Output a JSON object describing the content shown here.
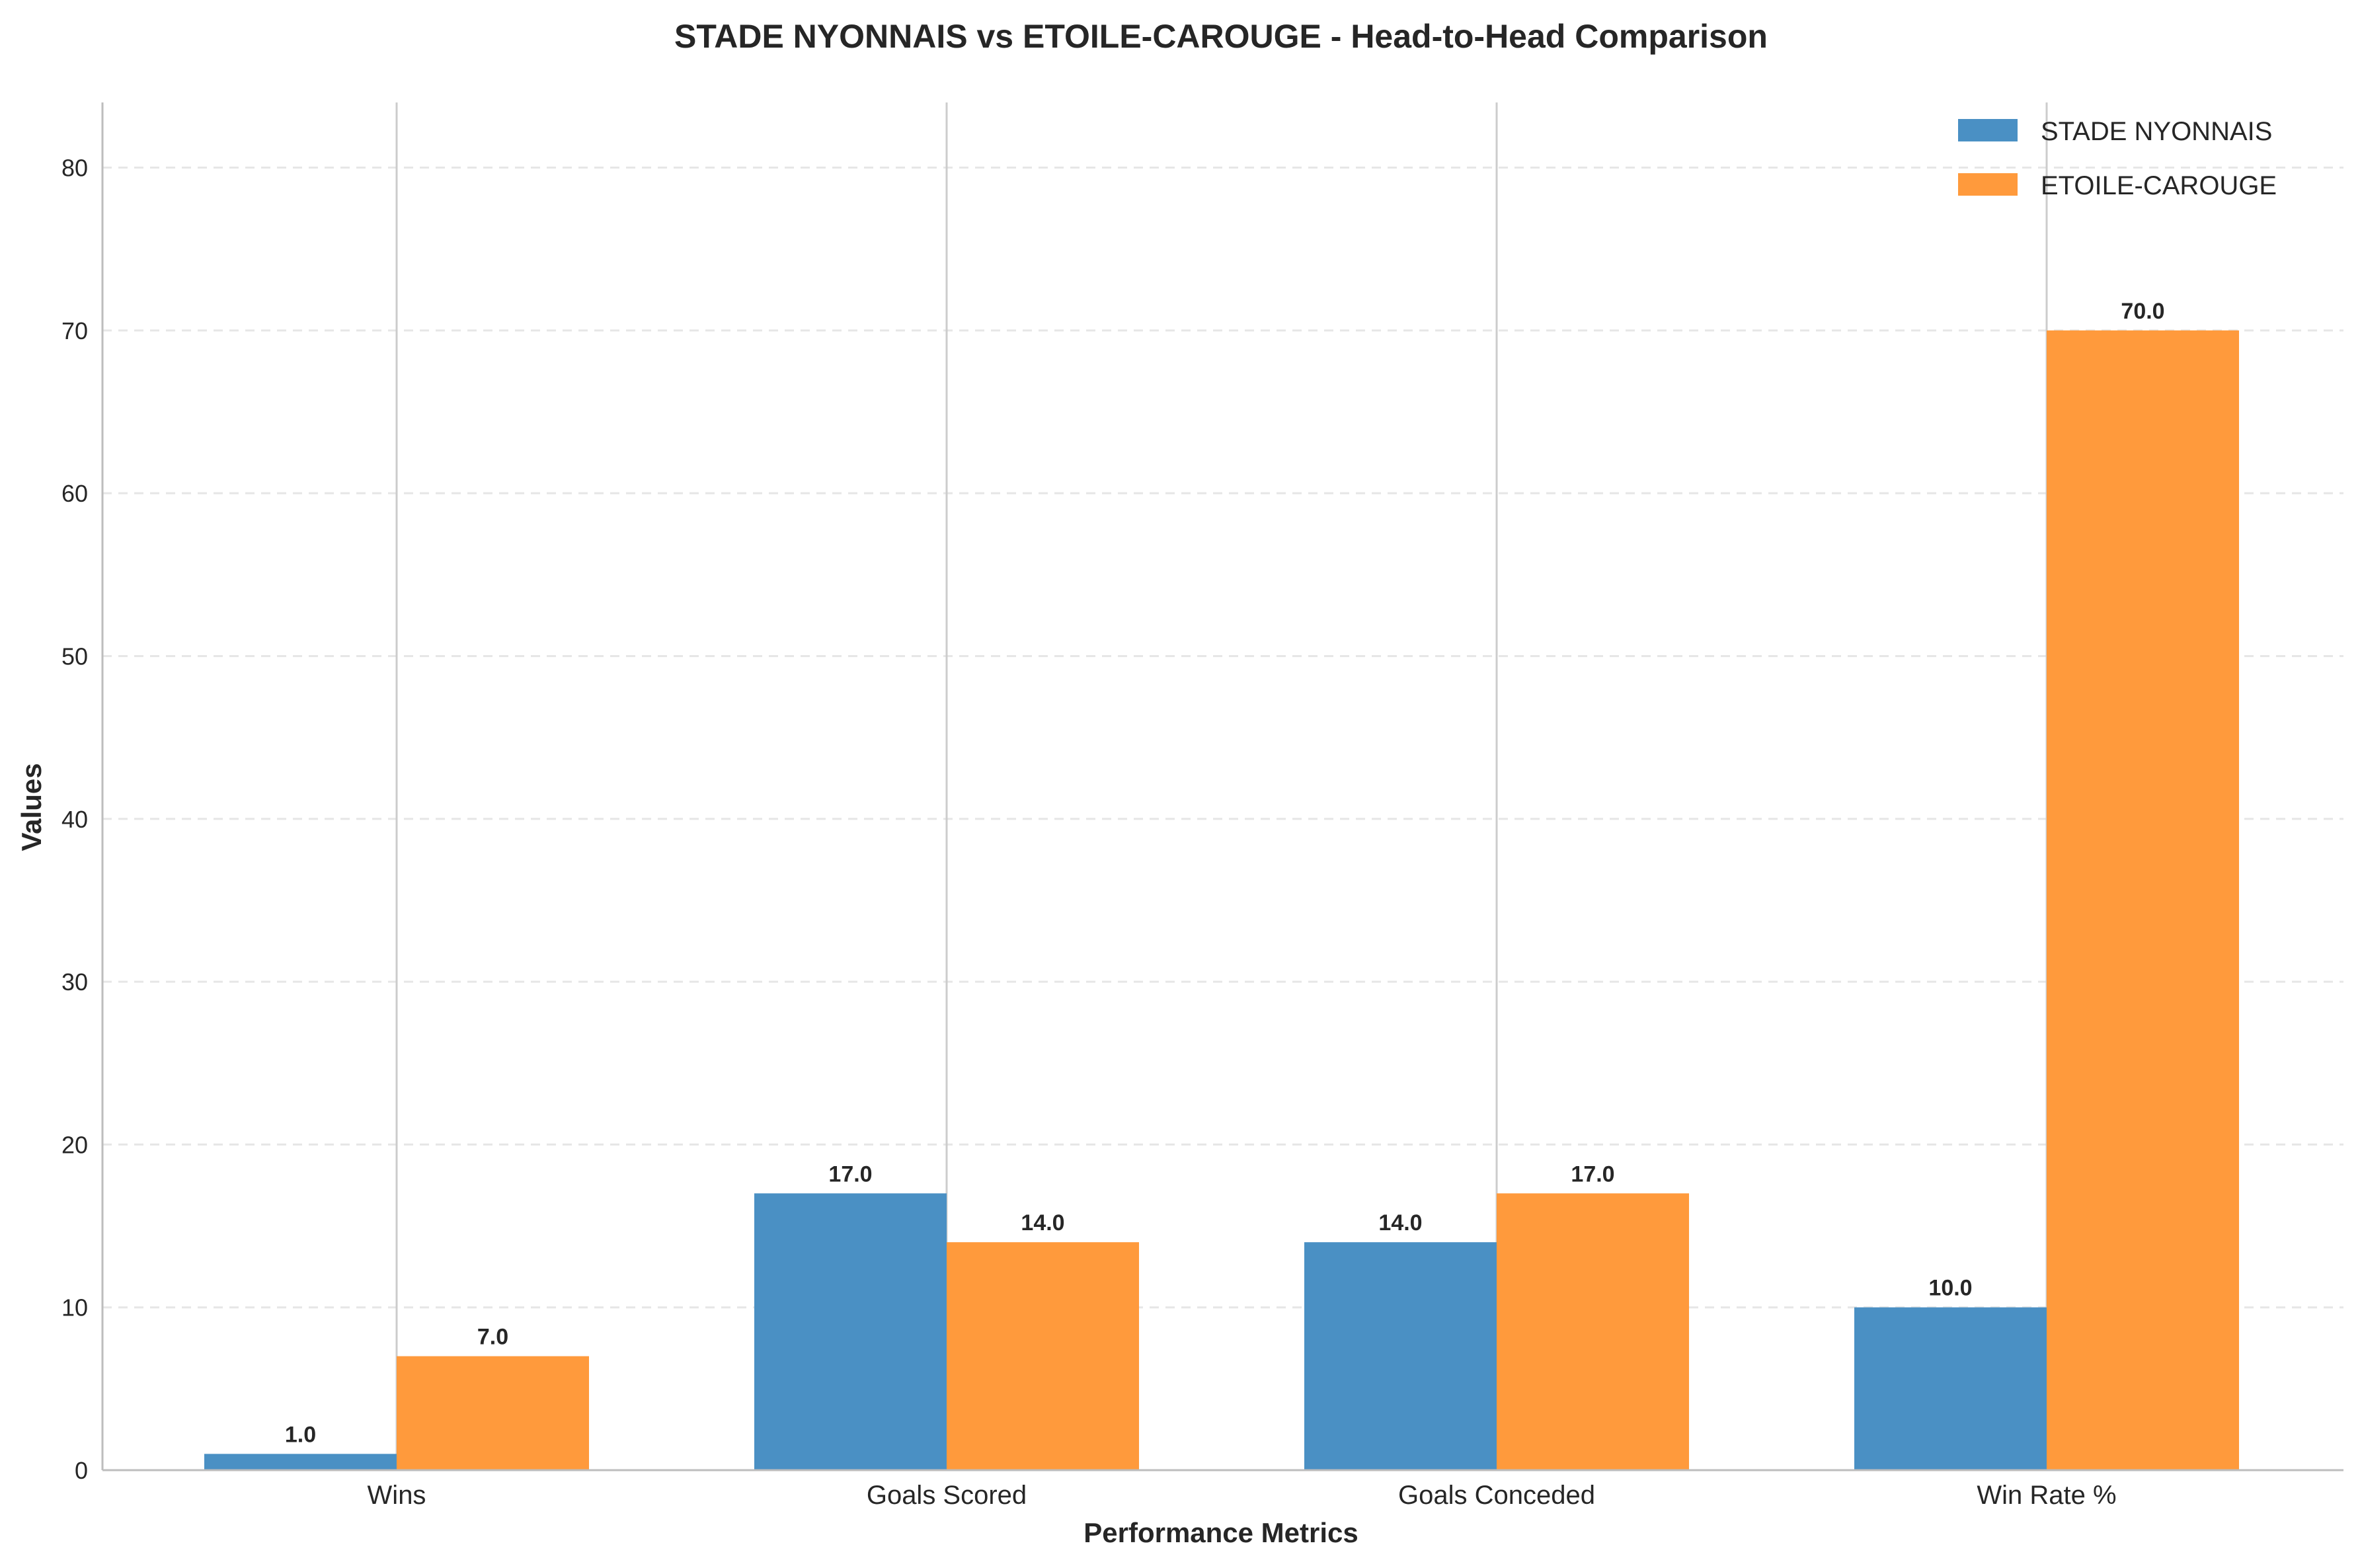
{
  "chart_data": {
    "type": "bar",
    "title": "STADE NYONNAIS vs ETOILE-CAROUGE - Head-to-Head Comparison",
    "xlabel": "Performance Metrics",
    "ylabel": "Values",
    "categories": [
      "Wins",
      "Goals Scored",
      "Goals Conceded",
      "Win Rate %"
    ],
    "series": [
      {
        "name": "STADE NYONNAIS",
        "values": [
          1.0,
          17.0,
          14.0,
          10.0
        ],
        "color": "#4a90c4"
      },
      {
        "name": "ETOILE-CAROUGE",
        "values": [
          7.0,
          14.0,
          17.0,
          70.0
        ],
        "color": "#ff9a3c"
      }
    ],
    "ylim": [
      0,
      84
    ],
    "yticks": [
      0,
      10,
      20,
      30,
      40,
      50,
      60,
      70,
      80
    ],
    "legend_position": "top-right",
    "grid": "horizontal dashed"
  }
}
